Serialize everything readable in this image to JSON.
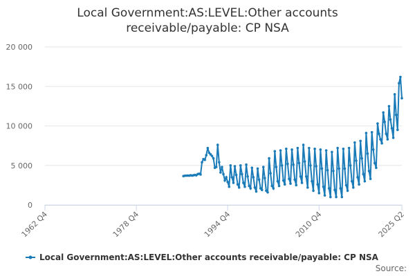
{
  "chart_data": {
    "type": "line",
    "title": "Local Government:AS:LEVEL:Other accounts receivable/payable: CP NSA",
    "source": "Source:",
    "x": [
      "1987 Q1",
      "1987 Q2",
      "1987 Q3",
      "1987 Q4",
      "1988 Q1",
      "1988 Q2",
      "1988 Q3",
      "1988 Q4",
      "1989 Q1",
      "1989 Q2",
      "1989 Q3",
      "1989 Q4",
      "1990 Q1",
      "1990 Q2",
      "1990 Q3",
      "1990 Q4",
      "1991 Q1",
      "1991 Q2",
      "1991 Q3",
      "1991 Q4",
      "1992 Q1",
      "1992 Q2",
      "1992 Q3",
      "1992 Q4",
      "1993 Q1",
      "1993 Q2",
      "1993 Q3",
      "1993 Q4",
      "1994 Q1",
      "1994 Q2",
      "1994 Q3",
      "1994 Q4",
      "1995 Q1",
      "1995 Q2",
      "1995 Q3",
      "1995 Q4",
      "1996 Q1",
      "1996 Q2",
      "1996 Q3",
      "1996 Q4",
      "1997 Q1",
      "1997 Q2",
      "1997 Q3",
      "1997 Q4",
      "1998 Q1",
      "1998 Q2",
      "1998 Q3",
      "1998 Q4",
      "1999 Q1",
      "1999 Q2",
      "1999 Q3",
      "1999 Q4",
      "2000 Q1",
      "2000 Q2",
      "2000 Q3",
      "2000 Q4",
      "2001 Q1",
      "2001 Q2",
      "2001 Q3",
      "2001 Q4",
      "2002 Q1",
      "2002 Q2",
      "2002 Q3",
      "2002 Q4",
      "2003 Q1",
      "2003 Q2",
      "2003 Q3",
      "2003 Q4",
      "2004 Q1",
      "2004 Q2",
      "2004 Q3",
      "2004 Q4",
      "2005 Q1",
      "2005 Q2",
      "2005 Q3",
      "2005 Q4",
      "2006 Q1",
      "2006 Q2",
      "2006 Q3",
      "2006 Q4",
      "2007 Q1",
      "2007 Q2",
      "2007 Q3",
      "2007 Q4",
      "2008 Q1",
      "2008 Q2",
      "2008 Q3",
      "2008 Q4",
      "2009 Q1",
      "2009 Q2",
      "2009 Q3",
      "2009 Q4",
      "2010 Q1",
      "2010 Q2",
      "2010 Q3",
      "2010 Q4",
      "2011 Q1",
      "2011 Q2",
      "2011 Q3",
      "2011 Q4",
      "2012 Q1",
      "2012 Q2",
      "2012 Q3",
      "2012 Q4",
      "2013 Q1",
      "2013 Q2",
      "2013 Q3",
      "2013 Q4",
      "2014 Q1",
      "2014 Q2",
      "2014 Q3",
      "2014 Q4",
      "2015 Q1",
      "2015 Q2",
      "2015 Q3",
      "2015 Q4",
      "2016 Q1",
      "2016 Q2",
      "2016 Q3",
      "2016 Q4",
      "2017 Q1",
      "2017 Q2",
      "2017 Q3",
      "2017 Q4",
      "2018 Q1",
      "2018 Q2",
      "2018 Q3",
      "2018 Q4",
      "2019 Q1",
      "2019 Q2",
      "2019 Q3",
      "2019 Q4",
      "2020 Q1",
      "2020 Q2",
      "2020 Q3",
      "2020 Q4",
      "2021 Q1",
      "2021 Q2",
      "2021 Q3",
      "2021 Q4",
      "2022 Q1",
      "2022 Q2",
      "2022 Q3",
      "2022 Q4",
      "2023 Q1",
      "2023 Q2",
      "2023 Q3",
      "2023 Q4",
      "2024 Q1",
      "2024 Q2",
      "2024 Q3",
      "2024 Q4",
      "2025 Q1",
      "2025 Q2"
    ],
    "series": [
      {
        "name": "Local Government:AS:LEVEL:Other accounts receivable/payable: CP NSA",
        "color": "#1a7bb8",
        "values": [
          3650,
          3700,
          3700,
          3720,
          3700,
          3750,
          3720,
          3750,
          3800,
          3750,
          3900,
          3950,
          3850,
          5400,
          5800,
          5700,
          6300,
          7200,
          6600,
          6400,
          6200,
          5900,
          4700,
          4800,
          7600,
          5400,
          4100,
          4800,
          3900,
          3100,
          3500,
          2900,
          2300,
          5000,
          3500,
          2800,
          4900,
          3800,
          2600,
          2200,
          5000,
          3900,
          2800,
          2300,
          5100,
          3600,
          2400,
          2100,
          4700,
          3500,
          2200,
          1700,
          4600,
          3200,
          2100,
          1900,
          4800,
          3400,
          1800,
          1600,
          5900,
          4000,
          2400,
          2100,
          6800,
          4800,
          3000,
          2400,
          6900,
          5000,
          3100,
          2600,
          7100,
          5200,
          3300,
          2700,
          7000,
          5100,
          3200,
          2500,
          7200,
          5300,
          3600,
          2800,
          7600,
          5500,
          3600,
          2200,
          7200,
          5000,
          3000,
          1800,
          7100,
          4900,
          2600,
          1500,
          7000,
          4600,
          2300,
          1200,
          6900,
          4400,
          2100,
          1000,
          6700,
          4300,
          1900,
          1000,
          7200,
          4600,
          2100,
          1000,
          7100,
          4600,
          2500,
          1800,
          7200,
          5000,
          3000,
          2200,
          7900,
          5600,
          3500,
          2600,
          8100,
          5900,
          3900,
          3000,
          9100,
          6500,
          4300,
          3300,
          9200,
          7000,
          5300,
          4700,
          10300,
          9000,
          8300,
          7800,
          11700,
          10500,
          9000,
          8300,
          12500,
          10800,
          9700,
          8500,
          14000,
          11400,
          9500,
          15400,
          16200,
          13500
        ]
      }
    ],
    "xlim": [
      "1962 Q4",
      "2025 Q2"
    ],
    "xticks": [
      "1962 Q4",
      "1978 Q4",
      "1994 Q4",
      "2010 Q4",
      "2025 Q2"
    ],
    "ylim": [
      0,
      20000
    ],
    "yticks": [
      0,
      {
        "value": 5000,
        "label": "5 000"
      },
      {
        "value": 10000,
        "label": "10 000"
      },
      {
        "value": 15000,
        "label": "15 000"
      },
      {
        "value": 20000,
        "label": "20 000"
      }
    ],
    "grid": true
  }
}
